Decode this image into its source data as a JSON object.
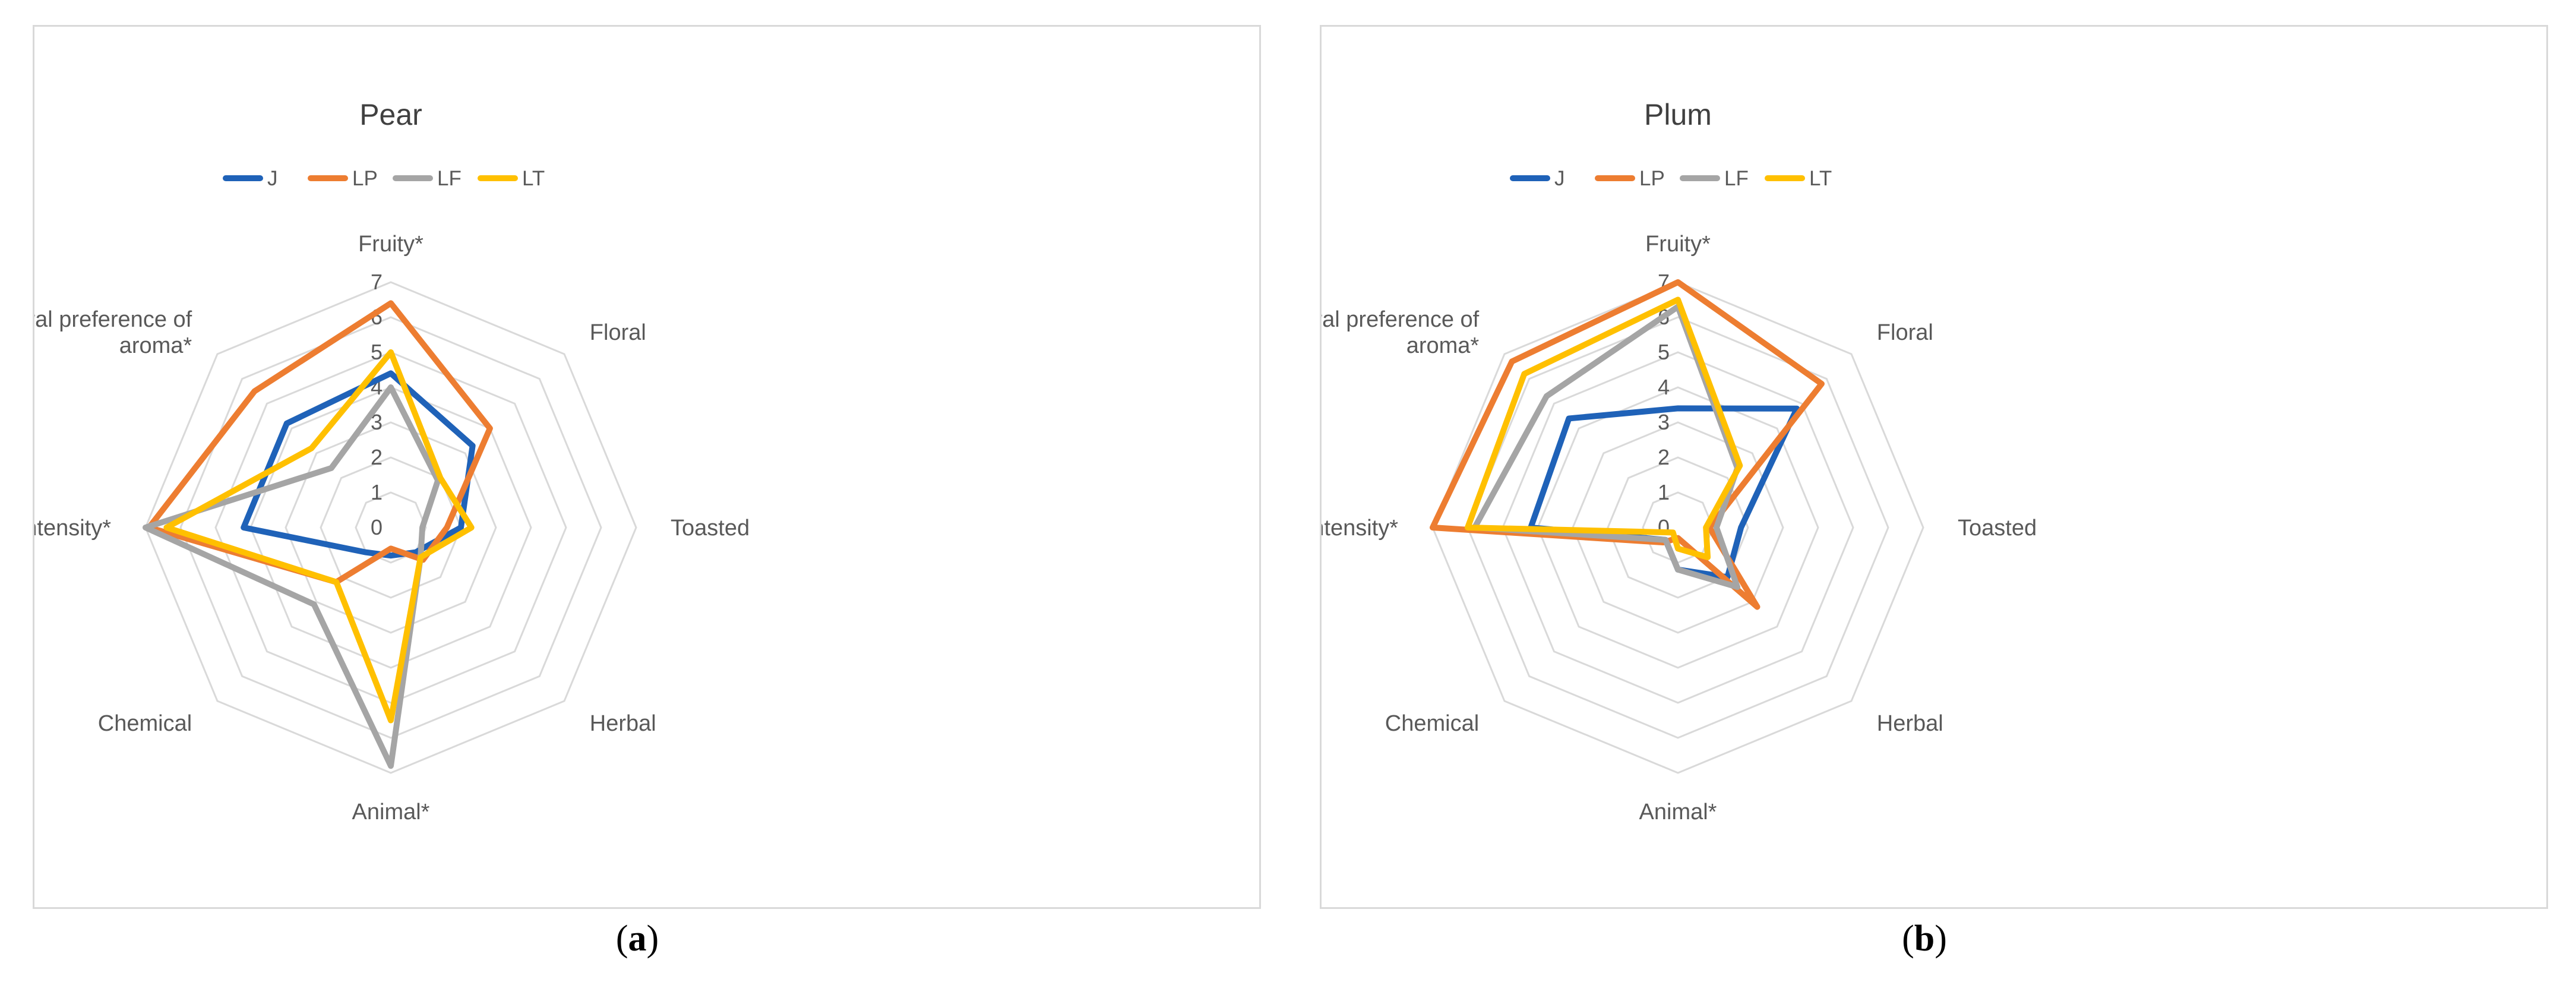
{
  "figure": {
    "captions": [
      "a",
      "b"
    ]
  },
  "chart_data": [
    {
      "type": "radar",
      "title": "Pear",
      "axes": [
        "Fruity*",
        "Floral",
        "Toasted",
        "Herbal",
        "Animal*",
        "Chemical",
        "Aroma intensity*",
        "General preference of aroma*"
      ],
      "axis_label_lines": [
        [
          "Fruity*"
        ],
        [
          "Floral"
        ],
        [
          "Toasted"
        ],
        [
          "Herbal"
        ],
        [
          "Animal*"
        ],
        [
          "Chemical"
        ],
        [
          "Aroma intensity*"
        ],
        [
          "General preference of",
          "aroma*"
        ]
      ],
      "ticks": [
        "0",
        "1",
        "2",
        "3",
        "4",
        "5",
        "6",
        "7"
      ],
      "range": [
        0,
        7
      ],
      "legend_position": "top",
      "series": [
        {
          "name": "J",
          "color": "#1f62b8",
          "values": [
            4.4,
            3.3,
            2.0,
            1.0,
            0.8,
            1.0,
            4.2,
            4.2
          ]
        },
        {
          "name": "LP",
          "color": "#ed7d31",
          "values": [
            6.4,
            4.0,
            1.6,
            1.3,
            0.6,
            2.2,
            6.9,
            5.5
          ]
        },
        {
          "name": "LF",
          "color": "#a5a5a5",
          "values": [
            4.0,
            1.9,
            0.9,
            1.2,
            6.8,
            3.1,
            7.0,
            2.4
          ]
        },
        {
          "name": "LT",
          "color": "#ffc000",
          "values": [
            5.0,
            2.0,
            2.3,
            1.2,
            5.5,
            2.2,
            6.4,
            3.2
          ]
        }
      ]
    },
    {
      "type": "radar",
      "title": "Plum",
      "axes": [
        "Fruity*",
        "Floral",
        "Toasted",
        "Herbal",
        "Animal*",
        "Chemical",
        "Aroma intensity*",
        "General preference of aroma*"
      ],
      "axis_label_lines": [
        [
          "Fruity*"
        ],
        [
          "Floral"
        ],
        [
          "Toasted"
        ],
        [
          "Herbal"
        ],
        [
          "Animal*"
        ],
        [
          "Chemical"
        ],
        [
          "Aroma intensity*"
        ],
        [
          "General preference of",
          "aroma*"
        ]
      ],
      "ticks": [
        "0",
        "1",
        "2",
        "3",
        "4",
        "5",
        "6",
        "7"
      ],
      "range": [
        0,
        7
      ],
      "legend_position": "top",
      "series": [
        {
          "name": "J",
          "color": "#1f62b8",
          "values": [
            3.4,
            4.8,
            1.8,
            2.0,
            1.2,
            0.5,
            4.2,
            4.4
          ]
        },
        {
          "name": "LP",
          "color": "#ed7d31",
          "values": [
            7.0,
            5.8,
            0.9,
            3.2,
            0.3,
            0.6,
            7.0,
            6.7
          ]
        },
        {
          "name": "LF",
          "color": "#a5a5a5",
          "values": [
            6.3,
            2.4,
            1.1,
            2.4,
            1.2,
            0.5,
            5.8,
            5.3
          ]
        },
        {
          "name": "LT",
          "color": "#ffc000",
          "values": [
            6.5,
            2.5,
            0.8,
            1.2,
            0.6,
            0.2,
            6.0,
            6.2
          ]
        }
      ]
    }
  ]
}
